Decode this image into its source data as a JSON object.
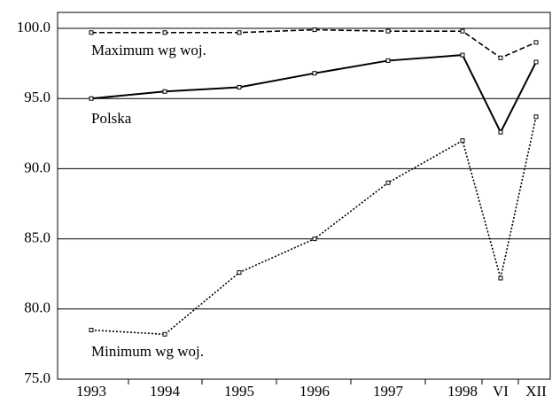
{
  "chart_data": {
    "type": "line",
    "categories": [
      "1993",
      "1994",
      "1995",
      "1996",
      "1997",
      "1998",
      "VI",
      "XII"
    ],
    "series": [
      {
        "name": "Maximum wg woj.",
        "color": "#000000",
        "style": "dashed",
        "values": [
          99.7,
          99.7,
          99.7,
          99.9,
          99.8,
          99.8,
          97.9,
          99.0
        ]
      },
      {
        "name": "Polska",
        "color": "#000000",
        "style": "solid",
        "values": [
          95.0,
          95.5,
          95.8,
          96.8,
          97.7,
          98.1,
          92.6,
          97.6
        ]
      },
      {
        "name": "Minimum wg woj.",
        "color": "#000000",
        "style": "dotted",
        "values": [
          78.5,
          78.2,
          82.6,
          85.0,
          89.0,
          92.0,
          82.2,
          93.7
        ]
      }
    ],
    "ylim": [
      75,
      100
    ],
    "yticks": [
      {
        "value": 75,
        "label": "75.0"
      },
      {
        "value": 80,
        "label": "80.0"
      },
      {
        "value": 85,
        "label": "85.0"
      },
      {
        "value": 90,
        "label": "90.0"
      },
      {
        "value": 95,
        "label": "95.0"
      },
      {
        "value": 100,
        "label": "100.0"
      }
    ],
    "grid": true
  }
}
